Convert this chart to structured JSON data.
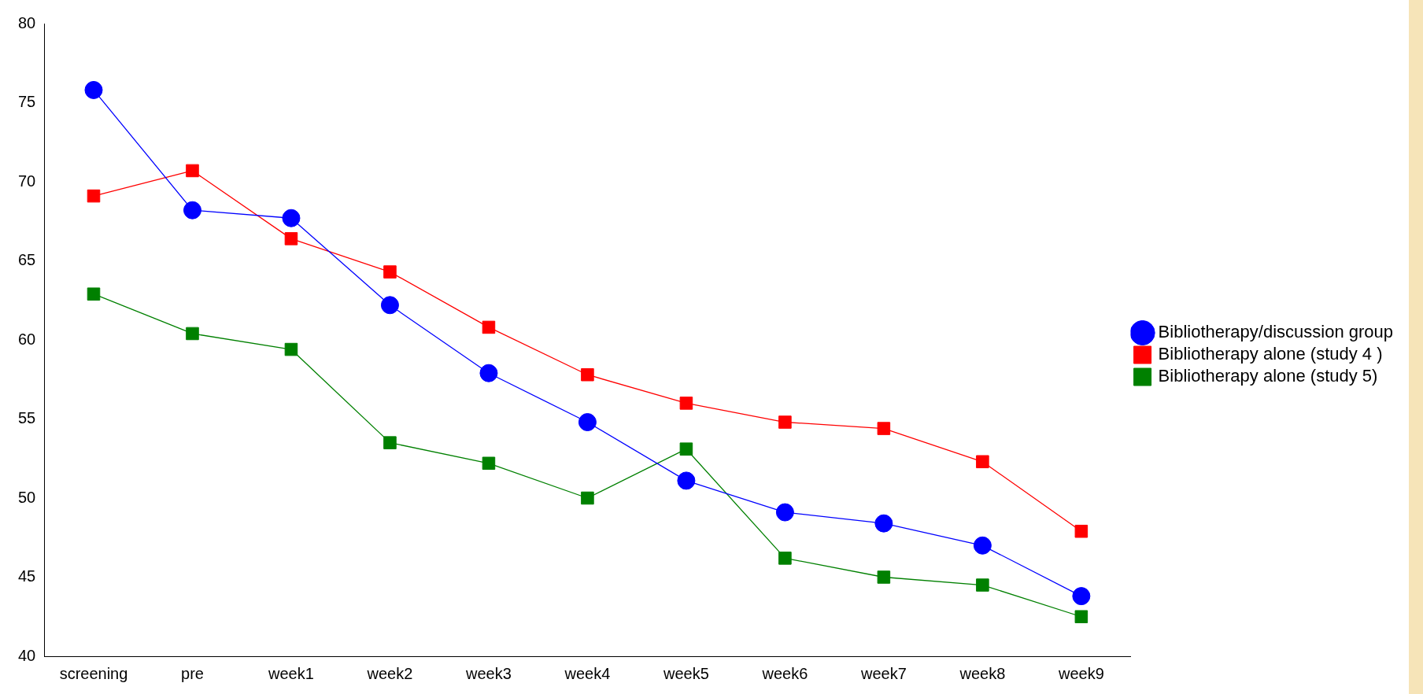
{
  "chart_data": {
    "type": "line",
    "categories": [
      "screening",
      "pre",
      "week1",
      "week2",
      "week3",
      "week4",
      "week5",
      "week6",
      "week7",
      "week8",
      "week9"
    ],
    "series": [
      {
        "name": "Bibliotherapy/discussion group",
        "color": "#0000ff",
        "marker": "circle",
        "values": [
          75.8,
          68.2,
          67.7,
          62.2,
          57.9,
          54.8,
          51.1,
          49.1,
          48.4,
          47.0,
          43.8
        ]
      },
      {
        "name": "Bibliotherapy alone (study 4 )",
        "color": "#ff0000",
        "marker": "square",
        "values": [
          69.1,
          70.7,
          66.4,
          64.3,
          60.8,
          57.8,
          56.0,
          54.8,
          54.4,
          52.3,
          47.9
        ]
      },
      {
        "name": "Bibliotherapy alone (study 5)",
        "color": "#008000",
        "marker": "square",
        "values": [
          62.9,
          60.4,
          59.4,
          53.5,
          52.2,
          50.0,
          53.1,
          46.2,
          45.0,
          44.5,
          42.5
        ]
      }
    ],
    "ylim": [
      40,
      80
    ],
    "yticks": [
      40,
      45,
      50,
      55,
      60,
      65,
      70,
      75,
      80
    ],
    "grid": false,
    "legend": "right",
    "line_style": "solid"
  }
}
